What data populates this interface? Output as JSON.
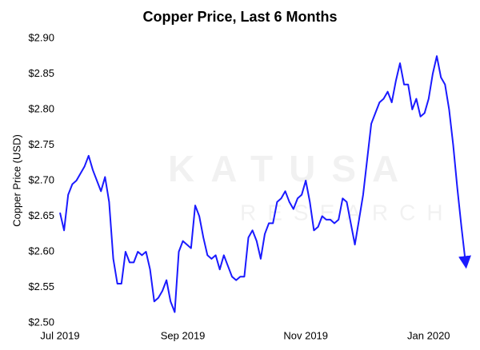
{
  "chart_data": {
    "type": "line",
    "title": "Copper Price, Last 6 Months",
    "y_label": "Copper Price (USD)",
    "watermark": [
      "KATUSA",
      "RESEARCH"
    ],
    "categories": [
      "Jul 2019",
      null,
      null,
      null,
      null,
      null,
      null,
      null,
      null,
      null,
      null,
      null,
      null,
      null,
      null,
      null,
      null,
      null,
      null,
      null,
      null,
      null,
      null,
      null,
      null,
      null,
      null,
      null,
      null,
      null,
      "Sep 2019",
      null,
      null,
      null,
      null,
      null,
      null,
      null,
      null,
      null,
      null,
      null,
      null,
      null,
      null,
      null,
      null,
      null,
      null,
      null,
      null,
      null,
      null,
      null,
      null,
      null,
      null,
      null,
      null,
      null,
      "Nov 2019",
      null,
      null,
      null,
      null,
      null,
      null,
      null,
      null,
      null,
      null,
      null,
      null,
      null,
      null,
      null,
      null,
      null,
      null,
      null,
      null,
      null,
      null,
      null,
      null,
      null,
      null,
      null,
      null,
      null,
      "Jan 2020",
      null,
      null,
      null,
      null,
      null,
      null,
      null,
      null,
      null
    ],
    "values": [
      2.655,
      2.63,
      2.68,
      2.695,
      2.7,
      2.71,
      2.72,
      2.735,
      2.715,
      2.7,
      2.685,
      2.705,
      2.67,
      2.59,
      2.555,
      2.555,
      2.6,
      2.585,
      2.585,
      2.6,
      2.595,
      2.6,
      2.575,
      2.53,
      2.535,
      2.545,
      2.56,
      2.53,
      2.515,
      2.6,
      2.615,
      2.61,
      2.605,
      2.665,
      2.65,
      2.62,
      2.595,
      2.59,
      2.595,
      2.575,
      2.595,
      2.58,
      2.565,
      2.56,
      2.565,
      2.565,
      2.62,
      2.63,
      2.615,
      2.59,
      2.625,
      2.64,
      2.64,
      2.67,
      2.675,
      2.685,
      2.67,
      2.66,
      2.675,
      2.68,
      2.7,
      2.67,
      2.63,
      2.635,
      2.65,
      2.645,
      2.645,
      2.64,
      2.645,
      2.675,
      2.67,
      2.64,
      2.61,
      2.645,
      2.68,
      2.73,
      2.78,
      2.795,
      2.81,
      2.815,
      2.825,
      2.81,
      2.84,
      2.865,
      2.835,
      2.835,
      2.8,
      2.815,
      2.79,
      2.795,
      2.815,
      2.85,
      2.875,
      2.845,
      2.835,
      2.8,
      2.75,
      2.69,
      2.635,
      2.585
    ],
    "color": "#1a1aff",
    "ylim": [
      2.5,
      2.9
    ],
    "yticks": [
      {
        "value": 2.5,
        "label": "$2.50"
      },
      {
        "value": 2.55,
        "label": "$2.55"
      },
      {
        "value": 2.6,
        "label": "$2.60"
      },
      {
        "value": 2.65,
        "label": "$2.65"
      },
      {
        "value": 2.7,
        "label": "$2.70"
      },
      {
        "value": 2.75,
        "label": "$2.75"
      },
      {
        "value": 2.8,
        "label": "$2.80"
      },
      {
        "value": 2.85,
        "label": "$2.85"
      },
      {
        "value": 2.9,
        "label": "$2.90"
      }
    ],
    "grid": false
  }
}
